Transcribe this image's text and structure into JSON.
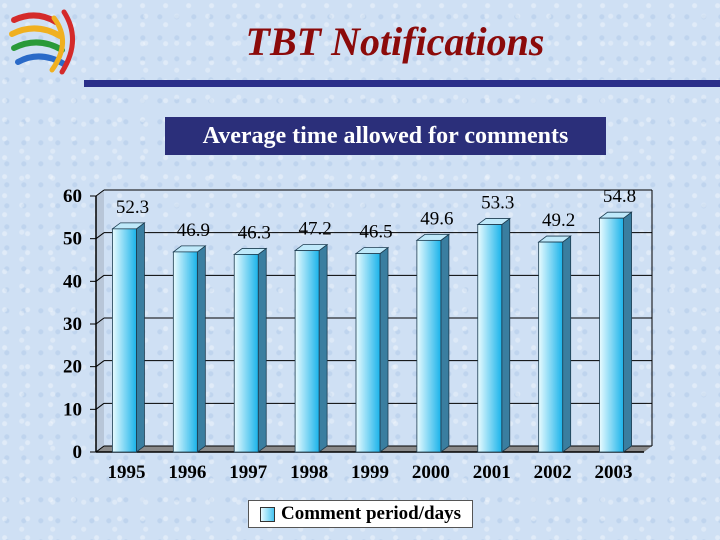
{
  "header": {
    "title": "TBT Notifications",
    "subtitle": "Average time allowed for comments"
  },
  "colors": {
    "title": "#8b0a0a",
    "rule": "#2a2f8a",
    "bar_light": "#e8fbff",
    "bar_dark": "#1ab3ea"
  },
  "chart_data": {
    "type": "bar",
    "categories": [
      "1995",
      "1996",
      "1997",
      "1998",
      "1999",
      "2000",
      "2001",
      "2002",
      "2003"
    ],
    "series": [
      {
        "name": "Comment period/days",
        "values": [
          52.3,
          46.9,
          46.3,
          47.2,
          46.5,
          49.6,
          53.3,
          49.2,
          54.8
        ]
      }
    ],
    "data_labels": [
      "52.3",
      "46.9",
      "46.3",
      "47.2",
      "46.5",
      "49.6",
      "53.3",
      "49.2",
      "54.8"
    ],
    "y_ticks": [
      "0",
      "10",
      "20",
      "30",
      "40",
      "50",
      "60"
    ],
    "ylim": [
      0,
      60
    ],
    "grid": true,
    "legend_position": "bottom"
  }
}
